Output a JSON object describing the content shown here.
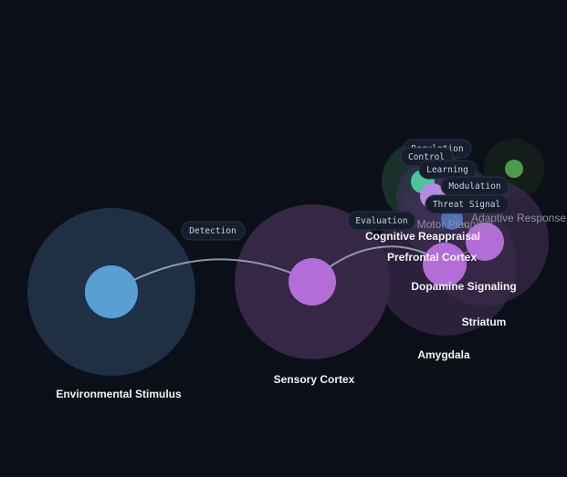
{
  "nodes": [
    {
      "id": "env",
      "label": "Environmental Stimulus",
      "color": "#5a9fd4",
      "halo": "#1f3045"
    },
    {
      "id": "sens",
      "label": "Sensory Cortex",
      "color": "#b26ed6",
      "halo": "#3a2a4a"
    },
    {
      "id": "amyg",
      "label": "Amygdala",
      "color": "#b26ed6",
      "halo": "#3a2a4a"
    },
    {
      "id": "stri",
      "label": "Striatum",
      "color": "#b26ed6",
      "halo": "#3a2a4a"
    },
    {
      "id": "dopa",
      "label": "Dopamine Signaling",
      "color": "#b26ed6",
      "halo": "#3a2a4a"
    },
    {
      "id": "pfc",
      "label": "Prefrontal Cortex",
      "color": "#5a9fd4",
      "halo": "#26364f"
    },
    {
      "id": "cogr",
      "label": "Cognitive Reappraisal",
      "color": "#b26ed6",
      "halo": "#3a2a4a"
    },
    {
      "id": "motor",
      "label": "Motor Planning",
      "color": "#4fc39a",
      "halo": "#1c3a30"
    },
    {
      "id": "adapt",
      "label": "Adaptive Response",
      "color": "#4c9a4c",
      "halo": "#141d1a"
    }
  ],
  "edges": [
    {
      "from": "env",
      "to": "sens",
      "label": "Detection"
    },
    {
      "from": "sens",
      "to": "amyg",
      "label": "Evaluation"
    },
    {
      "label": "Regulation"
    },
    {
      "label": "Control"
    },
    {
      "label": "Learning"
    },
    {
      "label": "Modulation"
    },
    {
      "label": "Threat Signal"
    }
  ]
}
